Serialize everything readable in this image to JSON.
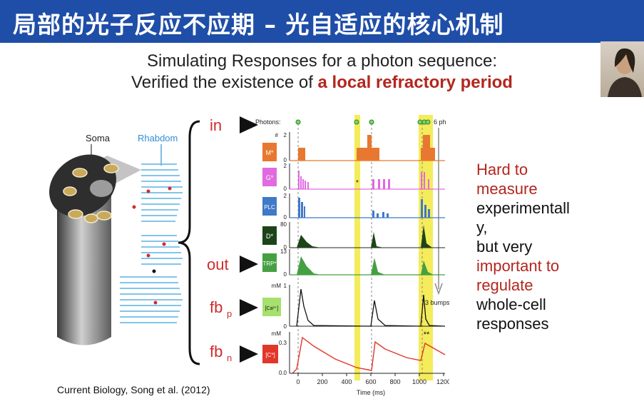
{
  "slide": {
    "title": "局部的光子反应不应期 – 光自适应的核心机制",
    "subtitle_line1": "Simulating Responses for a photon sequence:",
    "subtitle_line2_prefix": "Verified the existence of ",
    "subtitle_line2_highlight": "a local refractory period",
    "citation": "Current Biology, Song et al. (2012)"
  },
  "diagram": {
    "soma_label": "Soma",
    "rhabdom_label": "Rhabdom"
  },
  "signals": {
    "in": "in",
    "out": "out",
    "fbp_main": "fb",
    "fbp_sub": "p",
    "fbn_main": "fb",
    "fbn_sub": "n"
  },
  "plot": {
    "photons_label": "Photons:",
    "six_ph": "6 ph",
    "three_bumps": "3 bumps",
    "single_star": "*",
    "double_star": "**",
    "x_axis_label": "Time (ms)",
    "x_ticks": [
      "0",
      "200",
      "400",
      "600",
      "800",
      "1000",
      "1200"
    ],
    "rows": [
      {
        "box": "M*",
        "unit": "#",
        "top": "2",
        "bot": "0",
        "color": "#e8782f"
      },
      {
        "box": "G*",
        "unit": "",
        "top": "2",
        "bot": "0",
        "color": "#e06adf"
      },
      {
        "box": "PLC",
        "unit": "",
        "top": "2",
        "bot": "0",
        "color": "#3f79c9"
      },
      {
        "box": "D*",
        "unit": "",
        "top": "80",
        "bot": "0",
        "color": "#1d4418"
      },
      {
        "box": "TRP*",
        "unit": "",
        "top": "13",
        "bot": "0",
        "color": "#45a042"
      },
      {
        "box": "[Ca²⁺]",
        "unit": "mM",
        "top": "1",
        "bot": "0",
        "color": "#a6e06d"
      },
      {
        "box": "[C*]",
        "unit": "mM",
        "top": "0.3",
        "bot": "0.0",
        "color": "#e2362a"
      }
    ]
  },
  "side_text": {
    "l1": "Hard to",
    "l2": "measure",
    "l3": "experimentall",
    "l4": "y,",
    "l5": "but very",
    "l6": "important to",
    "l7": "regulate",
    "l8": "whole-cell",
    "l9": "responses"
  },
  "colors": {
    "banner": "#1f4ea8",
    "accent_red": "#b3261e",
    "highlight": "#f4ec5a"
  }
}
